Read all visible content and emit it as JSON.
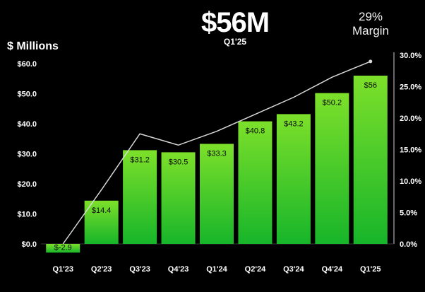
{
  "header": {
    "headline": "$56M",
    "headline_sub": "Q1'25",
    "margin_label_line1": "29%",
    "margin_label_line2": "Margin"
  },
  "chart_data": {
    "type": "bar",
    "title": "",
    "ylabel": "$ Millions",
    "xlabel": "",
    "categories": [
      "Q1'23",
      "Q2'23",
      "Q3'23",
      "Q4'23",
      "Q1'24",
      "Q2'24",
      "Q3'24",
      "Q4'24",
      "Q1'25"
    ],
    "series": [
      {
        "type": "bar",
        "axis": "left",
        "values": [
          -2.9,
          14.4,
          31.2,
          30.5,
          33.3,
          40.8,
          43.2,
          50.2,
          56
        ],
        "value_labels": [
          "$-2.9",
          "$14.4",
          "$31.2",
          "$30.5",
          "$33.3",
          "$40.8",
          "$43.2",
          "$50.2",
          "$56"
        ]
      },
      {
        "type": "line",
        "axis": "right",
        "values": [
          0.0,
          8.6,
          17.5,
          15.7,
          17.9,
          20.6,
          23.3,
          26.5,
          29.0
        ]
      }
    ],
    "y_left": {
      "ylim": [
        0,
        60
      ],
      "ticks": [
        0,
        10,
        20,
        30,
        40,
        50,
        60
      ],
      "tick_labels": [
        "$0.0",
        "$10.0",
        "$20.0",
        "$30.0",
        "$40.0",
        "$50.0",
        "$60.0"
      ]
    },
    "y_right": {
      "ylim": [
        0,
        30
      ],
      "ticks": [
        0,
        5,
        10,
        15,
        20,
        25,
        30
      ],
      "tick_labels": [
        "0.0%",
        "5.0%",
        "10.0%",
        "15.0%",
        "20.0%",
        "25.0%",
        "30.0%"
      ]
    },
    "grid": false,
    "legend": "none",
    "colors": {
      "bar_top": "#7de02a",
      "bar_bottom": "#17b52a",
      "line": "#d8d8d8",
      "axis": "#cfcfcf",
      "text": "#ffffff"
    }
  }
}
